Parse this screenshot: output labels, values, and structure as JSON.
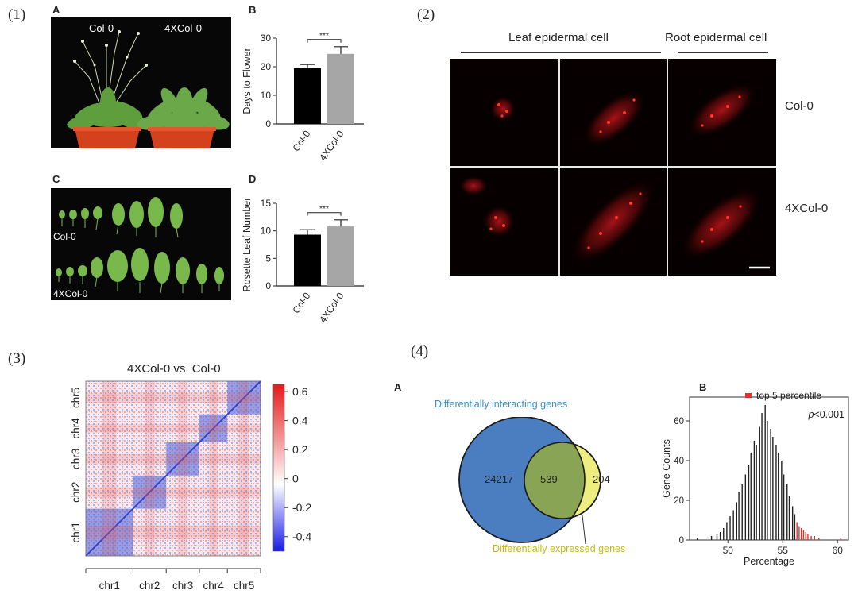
{
  "figure": {
    "panel_labels": [
      "(1)",
      "(2)",
      "(3)",
      "(4)"
    ],
    "p1": {
      "letter_a": "A",
      "letter_b": "B",
      "letter_c": "C",
      "letter_d": "D",
      "photo_a_label_left": "Col-0",
      "photo_a_label_right": "4XCol-0",
      "photo_c_label_top": "Col-0",
      "photo_c_label_bottom": "4XCol-0"
    },
    "p2": {
      "header_leaf": "Leaf epidermal cell",
      "header_root": "Root epidermal cell",
      "row_labels": [
        "Col-0",
        "4XCol-0"
      ]
    },
    "p3": {
      "title": "4XCol-0 vs. Col-0",
      "chromosomes": [
        "chr1",
        "chr2",
        "chr3",
        "chr4",
        "chr5"
      ],
      "colorbar_ticks": [
        "0.6",
        "0.4",
        "0.2",
        "0",
        "-0.2",
        "-0.4"
      ]
    },
    "p4": {
      "letter_a": "A",
      "letter_b": "B",
      "venn": {
        "left_label": "Differentially interacting genes",
        "right_label": "Differentially expressed genes",
        "left_only": "24217",
        "overlap": "539",
        "right_only": "204"
      },
      "hist_legend": "top 5 percentile",
      "pvalue_p": "p",
      "pvalue_rest": "<0.001"
    }
  },
  "chart_data": [
    {
      "type": "bar",
      "panel": "1B",
      "categories": [
        "Col-0",
        "4XCol-0"
      ],
      "values": [
        19.5,
        24.5
      ],
      "errors": [
        1.3,
        2.5
      ],
      "ylabel": "Days to Flower",
      "ylim": [
        0,
        30
      ],
      "yticks": [
        0,
        10,
        20,
        30
      ],
      "significance": "***",
      "colors": [
        "#000000",
        "#a6a6a6"
      ]
    },
    {
      "type": "bar",
      "panel": "1D",
      "categories": [
        "Col-0",
        "4XCol-0"
      ],
      "values": [
        9.3,
        10.8
      ],
      "errors": [
        0.9,
        1.2
      ],
      "ylabel": "Rosette Leaf Number",
      "ylim": [
        0,
        15
      ],
      "yticks": [
        0,
        5,
        10,
        15
      ],
      "significance": "***",
      "colors": [
        "#000000",
        "#a6a6a6"
      ]
    },
    {
      "type": "heatmap",
      "panel": "3",
      "title": "4XCol-0 vs. Col-0",
      "categories": [
        "chr1",
        "chr2",
        "chr3",
        "chr4",
        "chr5"
      ],
      "colorbar_range": [
        -0.5,
        0.65
      ],
      "colorbar_ticks": [
        0.6,
        0.4,
        0.2,
        0,
        -0.2,
        -0.4
      ]
    },
    {
      "type": "bar",
      "panel": "4B",
      "xlabel": "Percentage",
      "ylabel": "Gene Counts",
      "xlim": [
        46.5,
        61
      ],
      "ylim": [
        0,
        72
      ],
      "xticks": [
        50,
        55,
        60
      ],
      "yticks": [
        0,
        20,
        40,
        60
      ],
      "legend": "top 5 percentile",
      "normal_color": "#222222",
      "top5_color": "#e0302a",
      "x": [
        47.2,
        48.5,
        49.0,
        49.3,
        49.6,
        49.9,
        50.2,
        50.5,
        50.8,
        51.0,
        51.3,
        51.6,
        51.9,
        52.1,
        52.4,
        52.6,
        52.9,
        53.1,
        53.4,
        53.6,
        53.9,
        54.1,
        54.4,
        54.6,
        54.9,
        55.1,
        55.4,
        55.6,
        55.9,
        56.1,
        56.3,
        56.5,
        56.7,
        56.9,
        57.1,
        57.3,
        57.6,
        57.9,
        58.3,
        60.3
      ],
      "values": [
        1,
        2,
        3,
        4,
        6,
        9,
        12,
        15,
        19,
        24,
        28,
        33,
        38,
        44,
        50,
        48,
        57,
        64,
        68,
        60,
        56,
        52,
        48,
        44,
        40,
        33,
        28,
        22,
        17,
        13,
        9,
        7,
        6,
        5,
        4,
        3,
        2,
        2,
        1,
        1
      ],
      "top5": [
        false,
        false,
        false,
        false,
        false,
        false,
        false,
        false,
        false,
        false,
        false,
        false,
        false,
        false,
        false,
        false,
        false,
        false,
        false,
        false,
        false,
        false,
        false,
        false,
        false,
        false,
        false,
        false,
        false,
        false,
        true,
        true,
        true,
        true,
        true,
        true,
        true,
        true,
        true,
        true
      ]
    }
  ]
}
